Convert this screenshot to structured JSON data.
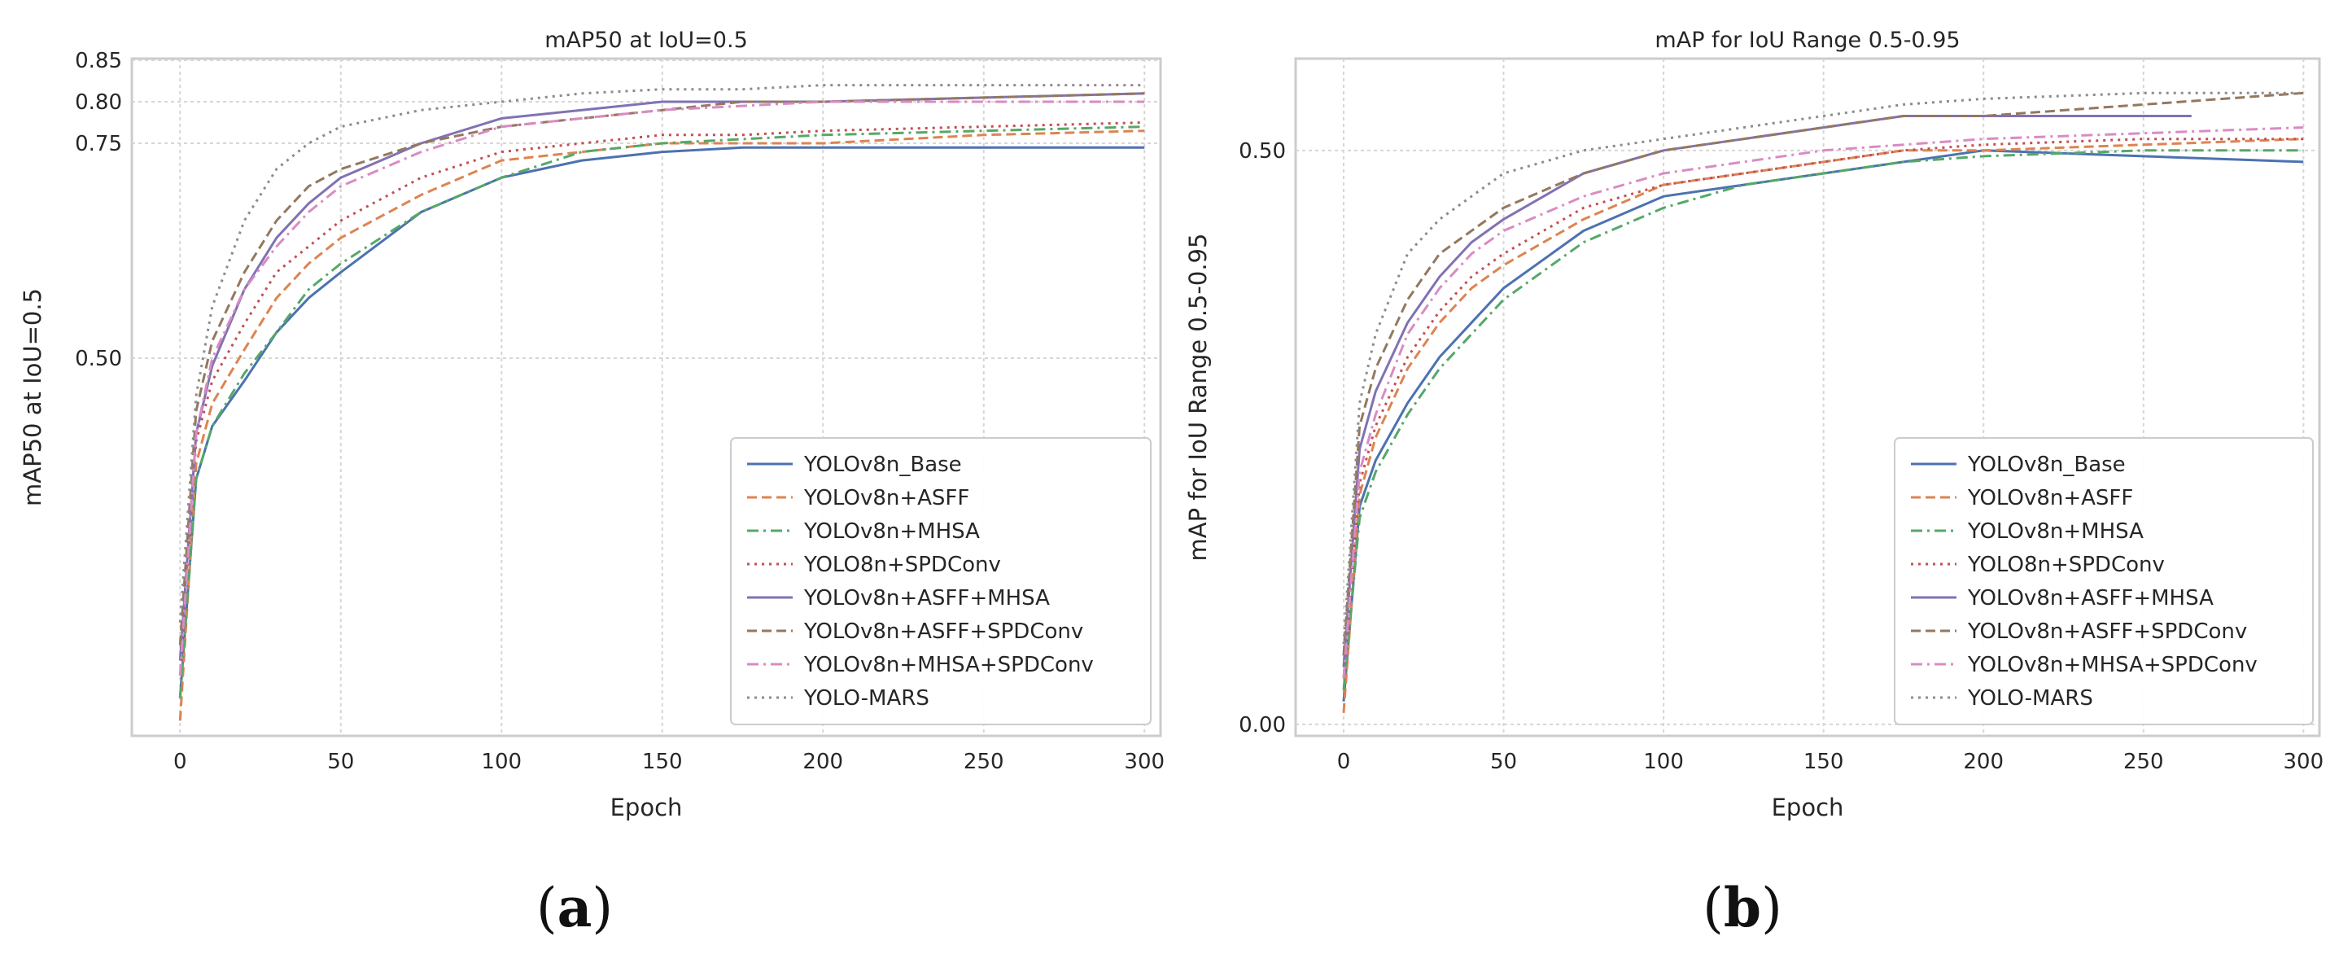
{
  "chart_data": [
    {
      "panel_label": "a",
      "type": "line",
      "title": "mAP50 at IoU=0.5",
      "xlabel": "Epoch",
      "ylabel": "mAP50 at IoU=0.5",
      "xlim": [
        -15,
        305
      ],
      "ylim": [
        0.0,
        0.85
      ],
      "xticks": [
        0,
        50,
        100,
        150,
        200,
        250,
        300
      ],
      "xtick_labels": [
        "0",
        "50",
        "100",
        "150",
        "200",
        "250",
        "300"
      ],
      "yticks": [
        0.5,
        0.75,
        0.8,
        0.85
      ],
      "ytick_labels": [
        "0.50",
        "0.75",
        "0.80",
        "0.85"
      ],
      "y_scale_note": "axis is compressed toward the bottom (tick 0.50 sits at roughly 28% of the height below the top)",
      "grid": true,
      "legend_position": "lower-right",
      "series": [
        {
          "name": "YOLOv8n_Base",
          "color": "#4c72b0",
          "dash": "solid",
          "x": [
            0,
            5,
            10,
            20,
            30,
            40,
            50,
            75,
            100,
            125,
            150,
            175,
            200,
            250,
            300
          ],
          "values": [
            0.05,
            0.34,
            0.41,
            0.47,
            0.53,
            0.57,
            0.6,
            0.67,
            0.71,
            0.73,
            0.74,
            0.745,
            0.745,
            0.745,
            0.745
          ]
        },
        {
          "name": "YOLOv8n+ASFF",
          "color": "#dd8452",
          "dash": "dashed",
          "x": [
            0,
            5,
            10,
            20,
            30,
            40,
            50,
            75,
            100,
            125,
            150,
            175,
            200,
            250,
            300
          ],
          "values": [
            0.02,
            0.36,
            0.44,
            0.51,
            0.57,
            0.61,
            0.64,
            0.69,
            0.73,
            0.74,
            0.75,
            0.75,
            0.75,
            0.76,
            0.765
          ]
        },
        {
          "name": "YOLOv8n+MHSA",
          "color": "#55a868",
          "dash": "dashdot",
          "x": [
            0,
            5,
            10,
            20,
            30,
            40,
            50,
            75,
            100,
            125,
            150,
            175,
            200,
            250,
            300
          ],
          "values": [
            0.05,
            0.34,
            0.41,
            0.48,
            0.53,
            0.58,
            0.61,
            0.67,
            0.71,
            0.74,
            0.75,
            0.755,
            0.76,
            0.765,
            0.77
          ]
        },
        {
          "name": "YOLO8n+SPDConv",
          "color": "#c44e52",
          "dash": "dotted",
          "x": [
            0,
            5,
            10,
            20,
            30,
            40,
            50,
            75,
            100,
            125,
            150,
            175,
            200,
            250,
            300
          ],
          "values": [
            0.08,
            0.39,
            0.47,
            0.54,
            0.6,
            0.63,
            0.66,
            0.71,
            0.74,
            0.75,
            0.76,
            0.76,
            0.765,
            0.77,
            0.775
          ]
        },
        {
          "name": "YOLOv8n+ASFF+MHSA",
          "color": "#8172b3",
          "dash": "solid",
          "x": [
            0,
            5,
            10,
            20,
            30,
            40,
            50,
            75,
            100,
            125,
            150,
            175,
            200,
            250,
            300
          ],
          "values": [
            0.1,
            0.4,
            0.49,
            0.58,
            0.64,
            0.68,
            0.71,
            0.75,
            0.78,
            0.79,
            0.8,
            0.8,
            0.8,
            0.805,
            0.81
          ]
        },
        {
          "name": "YOLOv8n+ASFF+SPDConv",
          "color": "#937860",
          "dash": "dashed",
          "x": [
            0,
            5,
            10,
            20,
            30,
            40,
            50,
            75,
            100,
            125,
            150,
            175,
            200,
            250,
            300
          ],
          "values": [
            0.12,
            0.43,
            0.52,
            0.6,
            0.66,
            0.7,
            0.72,
            0.75,
            0.77,
            0.78,
            0.79,
            0.8,
            0.8,
            0.805,
            0.81
          ]
        },
        {
          "name": "YOLOv8n+MHSA+SPDConv",
          "color": "#da8bc3",
          "dash": "dashdot",
          "x": [
            0,
            5,
            10,
            20,
            30,
            40,
            50,
            75,
            100,
            125,
            150,
            175,
            200,
            250,
            300
          ],
          "values": [
            0.08,
            0.4,
            0.5,
            0.58,
            0.63,
            0.67,
            0.7,
            0.74,
            0.77,
            0.78,
            0.79,
            0.795,
            0.8,
            0.8,
            0.8
          ]
        },
        {
          "name": "YOLO-MARS",
          "color": "#8c8c8c",
          "dash": "dotted",
          "x": [
            0,
            5,
            10,
            20,
            30,
            40,
            50,
            75,
            100,
            125,
            150,
            175,
            200,
            250,
            300
          ],
          "values": [
            0.15,
            0.45,
            0.56,
            0.66,
            0.72,
            0.75,
            0.77,
            0.79,
            0.8,
            0.81,
            0.815,
            0.815,
            0.82,
            0.82,
            0.82
          ]
        }
      ]
    },
    {
      "panel_label": "b",
      "type": "line",
      "title": "mAP for IoU Range 0.5-0.95",
      "xlabel": "Epoch",
      "ylabel": "mAP for IoU Range 0.5-0.95",
      "xlim": [
        -15,
        305
      ],
      "ylim": [
        -0.01,
        0.58
      ],
      "xticks": [
        0,
        50,
        100,
        150,
        200,
        250,
        300
      ],
      "xtick_labels": [
        "0",
        "50",
        "100",
        "150",
        "200",
        "250",
        "300"
      ],
      "yticks": [
        0.0,
        0.5
      ],
      "ytick_labels": [
        "0.00",
        "0.50"
      ],
      "grid": true,
      "legend_position": "lower-right",
      "series": [
        {
          "name": "YOLOv8n_Base",
          "color": "#4c72b0",
          "dash": "solid",
          "x": [
            0,
            5,
            10,
            20,
            30,
            40,
            50,
            75,
            100,
            125,
            150,
            175,
            200,
            250,
            300
          ],
          "values": [
            0.02,
            0.19,
            0.23,
            0.28,
            0.32,
            0.35,
            0.38,
            0.43,
            0.46,
            0.47,
            0.48,
            0.49,
            0.5,
            0.495,
            0.49
          ]
        },
        {
          "name": "YOLOv8n+ASFF",
          "color": "#dd8452",
          "dash": "dashed",
          "x": [
            0,
            5,
            10,
            20,
            30,
            40,
            50,
            75,
            100,
            125,
            150,
            175,
            200,
            250,
            300
          ],
          "values": [
            0.01,
            0.2,
            0.25,
            0.31,
            0.35,
            0.38,
            0.4,
            0.44,
            0.47,
            0.48,
            0.49,
            0.5,
            0.5,
            0.505,
            0.51
          ]
        },
        {
          "name": "YOLOv8n+MHSA",
          "color": "#55a868",
          "dash": "dashdot",
          "x": [
            0,
            5,
            10,
            20,
            30,
            40,
            50,
            75,
            100,
            125,
            150,
            175,
            200,
            250,
            300
          ],
          "values": [
            0.03,
            0.18,
            0.22,
            0.27,
            0.31,
            0.34,
            0.37,
            0.42,
            0.45,
            0.47,
            0.48,
            0.49,
            0.495,
            0.5,
            0.5
          ]
        },
        {
          "name": "YOLO8n+SPDConv",
          "color": "#c44e52",
          "dash": "dotted",
          "x": [
            0,
            5,
            10,
            20,
            30,
            40,
            50,
            75,
            100,
            125,
            150,
            175,
            200,
            250,
            300
          ],
          "values": [
            0.04,
            0.21,
            0.26,
            0.32,
            0.36,
            0.39,
            0.41,
            0.45,
            0.47,
            0.48,
            0.49,
            0.5,
            0.505,
            0.51,
            0.51
          ]
        },
        {
          "name": "YOLOv8n+ASFF+MHSA",
          "color": "#8172b3",
          "dash": "solid",
          "x": [
            0,
            5,
            10,
            20,
            30,
            40,
            50,
            75,
            100,
            125,
            150,
            175,
            200,
            250,
            265
          ],
          "values": [
            0.05,
            0.24,
            0.29,
            0.35,
            0.39,
            0.42,
            0.44,
            0.48,
            0.5,
            0.51,
            0.52,
            0.53,
            0.53,
            0.53,
            0.53
          ]
        },
        {
          "name": "YOLOv8n+ASFF+SPDConv",
          "color": "#937860",
          "dash": "dashed",
          "x": [
            0,
            5,
            10,
            20,
            30,
            40,
            50,
            75,
            100,
            125,
            150,
            175,
            200,
            250,
            300
          ],
          "values": [
            0.06,
            0.26,
            0.31,
            0.37,
            0.41,
            0.43,
            0.45,
            0.48,
            0.5,
            0.51,
            0.52,
            0.53,
            0.53,
            0.54,
            0.55
          ]
        },
        {
          "name": "YOLOv8n+MHSA+SPDConv",
          "color": "#da8bc3",
          "dash": "dashdot",
          "x": [
            0,
            5,
            10,
            20,
            30,
            40,
            50,
            75,
            100,
            125,
            150,
            175,
            200,
            250,
            300
          ],
          "values": [
            0.04,
            0.22,
            0.27,
            0.34,
            0.38,
            0.41,
            0.43,
            0.46,
            0.48,
            0.49,
            0.5,
            0.505,
            0.51,
            0.515,
            0.52
          ]
        },
        {
          "name": "YOLO-MARS",
          "color": "#8c8c8c",
          "dash": "dotted",
          "x": [
            0,
            5,
            10,
            20,
            30,
            40,
            50,
            75,
            100,
            125,
            150,
            175,
            200,
            250,
            300
          ],
          "values": [
            0.07,
            0.28,
            0.34,
            0.41,
            0.44,
            0.46,
            0.48,
            0.5,
            0.51,
            0.52,
            0.53,
            0.54,
            0.545,
            0.55,
            0.55
          ]
        }
      ]
    }
  ]
}
